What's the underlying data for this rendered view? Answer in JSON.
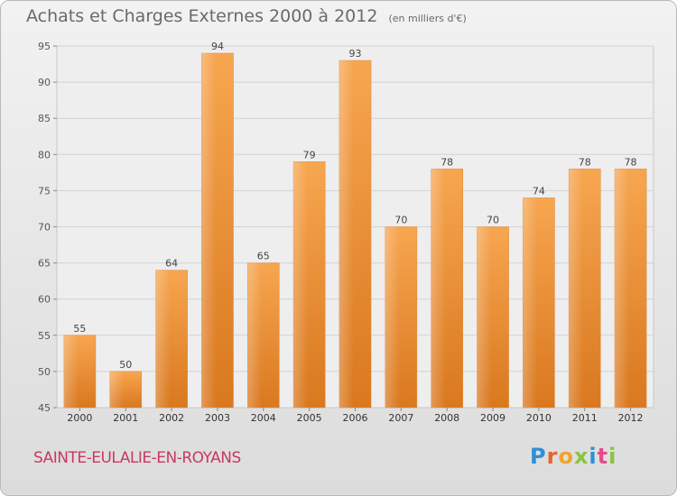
{
  "chart_data": {
    "type": "bar",
    "title": "Achats et Charges Externes 2000 à 2012",
    "subtitle": "(en milliers d'€)",
    "categories": [
      "2000",
      "2001",
      "2002",
      "2003",
      "2004",
      "2005",
      "2006",
      "2007",
      "2008",
      "2009",
      "2010",
      "2011",
      "2012"
    ],
    "values": [
      55,
      50,
      64,
      94,
      65,
      79,
      93,
      70,
      78,
      70,
      74,
      78,
      78
    ],
    "ylim": [
      45,
      95
    ],
    "yticks": [
      45,
      50,
      55,
      60,
      65,
      70,
      75,
      80,
      85,
      90,
      95
    ],
    "grid": true,
    "bar_color": "#f0943a"
  },
  "footer": {
    "town": "SAINTE-EULALIE-EN-ROYANS",
    "logo_letters": [
      {
        "char": "P",
        "color": "#2f8fd6"
      },
      {
        "char": "r",
        "color": "#e8632a"
      },
      {
        "char": "o",
        "color": "#f0a52a"
      },
      {
        "char": "x",
        "color": "#8ac43f"
      },
      {
        "char": "i",
        "color": "#2f8fd6"
      },
      {
        "char": "t",
        "color": "#e84a8a"
      },
      {
        "char": "i",
        "color": "#8ac43f"
      }
    ]
  }
}
